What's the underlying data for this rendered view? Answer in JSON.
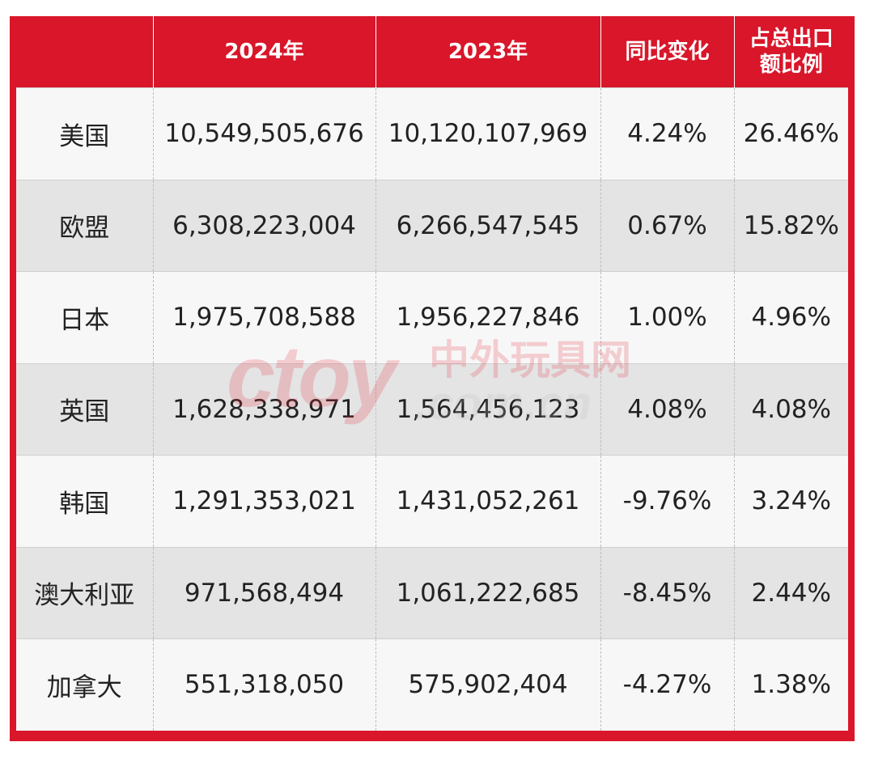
{
  "table": {
    "headers": [
      "",
      "2024年",
      "2023年",
      "同比变化",
      "占总出口额比例"
    ],
    "header_lines": {
      "share": [
        "占总出口",
        "额比例"
      ]
    },
    "rows": [
      {
        "region": "美国",
        "y2024": "10,549,505,676",
        "y2023": "10,120,107,969",
        "yoy": "4.24%",
        "share": "26.46%"
      },
      {
        "region": "欧盟",
        "y2024": "6,308,223,004",
        "y2023": "6,266,547,545",
        "yoy": "0.67%",
        "share": "15.82%"
      },
      {
        "region": "日本",
        "y2024": "1,975,708,588",
        "y2023": "1,956,227,846",
        "yoy": "1.00%",
        "share": "4.96%"
      },
      {
        "region": "英国",
        "y2024": "1,628,338,971",
        "y2023": "1,564,456,123",
        "yoy": "4.08%",
        "share": "4.08%"
      },
      {
        "region": "韩国",
        "y2024": "1,291,353,021",
        "y2023": "1,431,052,261",
        "yoy": "-9.76%",
        "share": "3.24%"
      },
      {
        "region": "澳大利亚",
        "y2024": "971,568,494",
        "y2023": "1,061,222,685",
        "yoy": "-8.45%",
        "share": "2.44%"
      },
      {
        "region": "加拿大",
        "y2024": "551,318,050",
        "y2023": "575,902,404",
        "yoy": "-4.27%",
        "share": "1.38%"
      }
    ]
  },
  "watermark": {
    "logo_text": "ctoy",
    "brand_cn": "中外玩具网",
    "domain": ".com.cn",
    "color": "#e8384a"
  },
  "colors": {
    "header_bg": "#d9162a",
    "row_light": "#f7f7f7",
    "row_dark": "#e4e4e4"
  }
}
